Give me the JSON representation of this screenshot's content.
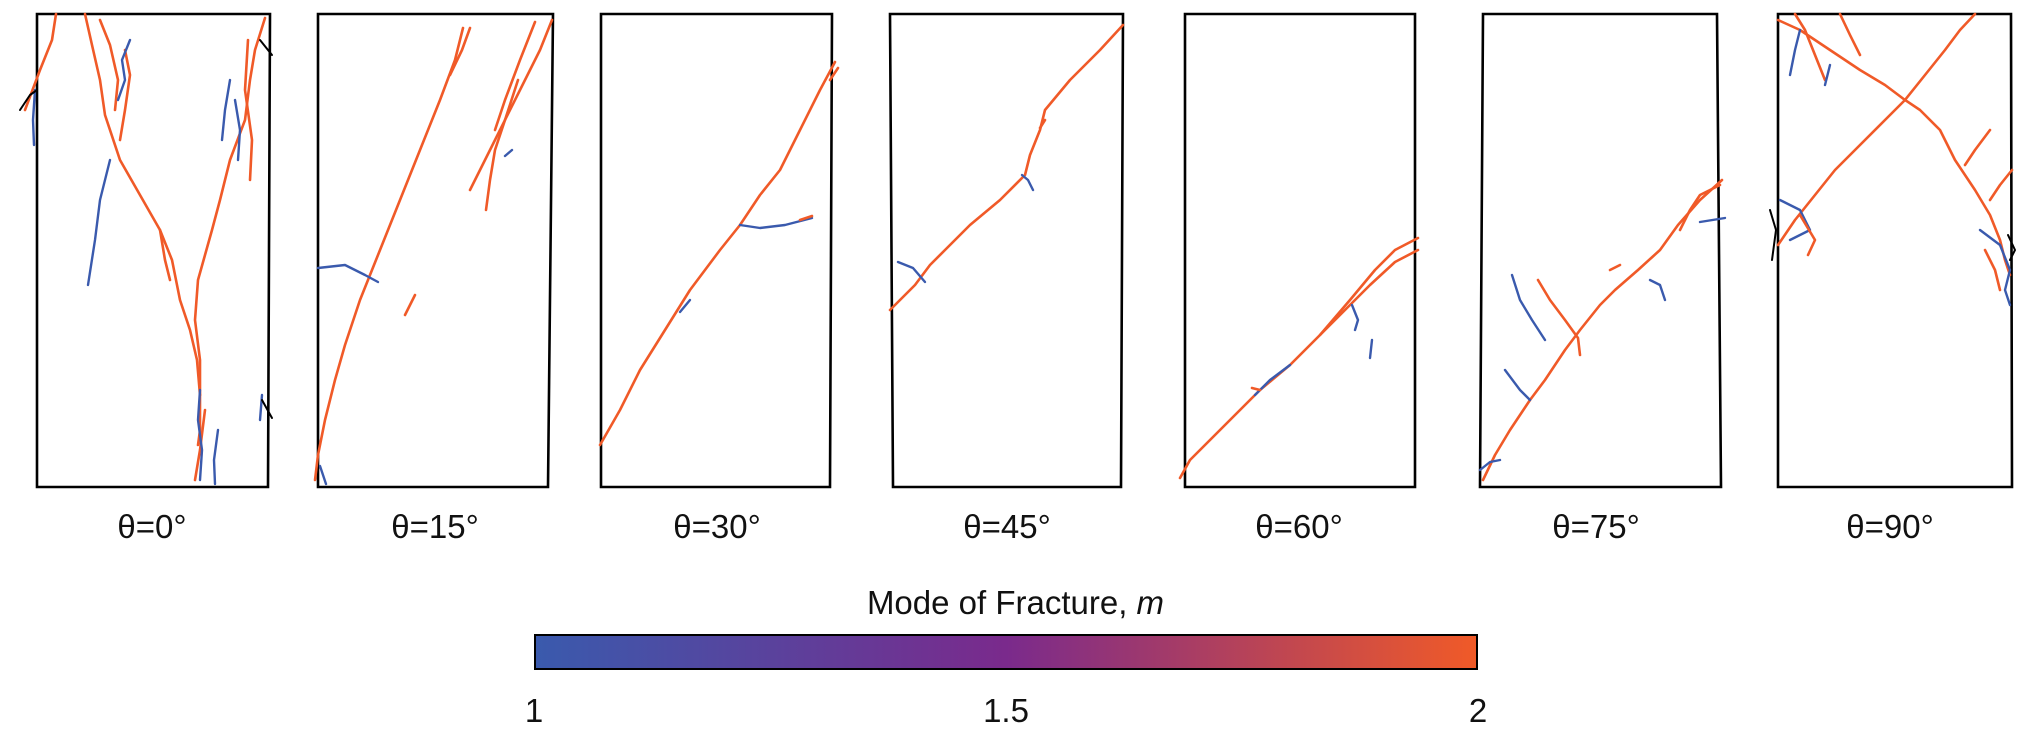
{
  "panels": [
    {
      "label": "θ=0°"
    },
    {
      "label": "θ=15°"
    },
    {
      "label": "θ=30°"
    },
    {
      "label": "θ=45°"
    },
    {
      "label": "θ=60°"
    },
    {
      "label": "θ=75°"
    },
    {
      "label": "θ=90°"
    }
  ],
  "colorbar": {
    "title_prefix": "Mode of Fracture, ",
    "title_var": "m",
    "min_label": "1",
    "mid_label": "1.5",
    "max_label": "2",
    "colors": [
      "#3a5aad",
      "#7a2a8c",
      "#f05a28"
    ]
  },
  "colors": {
    "frame": "#000000",
    "mode_1": "#3a5aad",
    "mode_2": "#f05a28"
  }
}
